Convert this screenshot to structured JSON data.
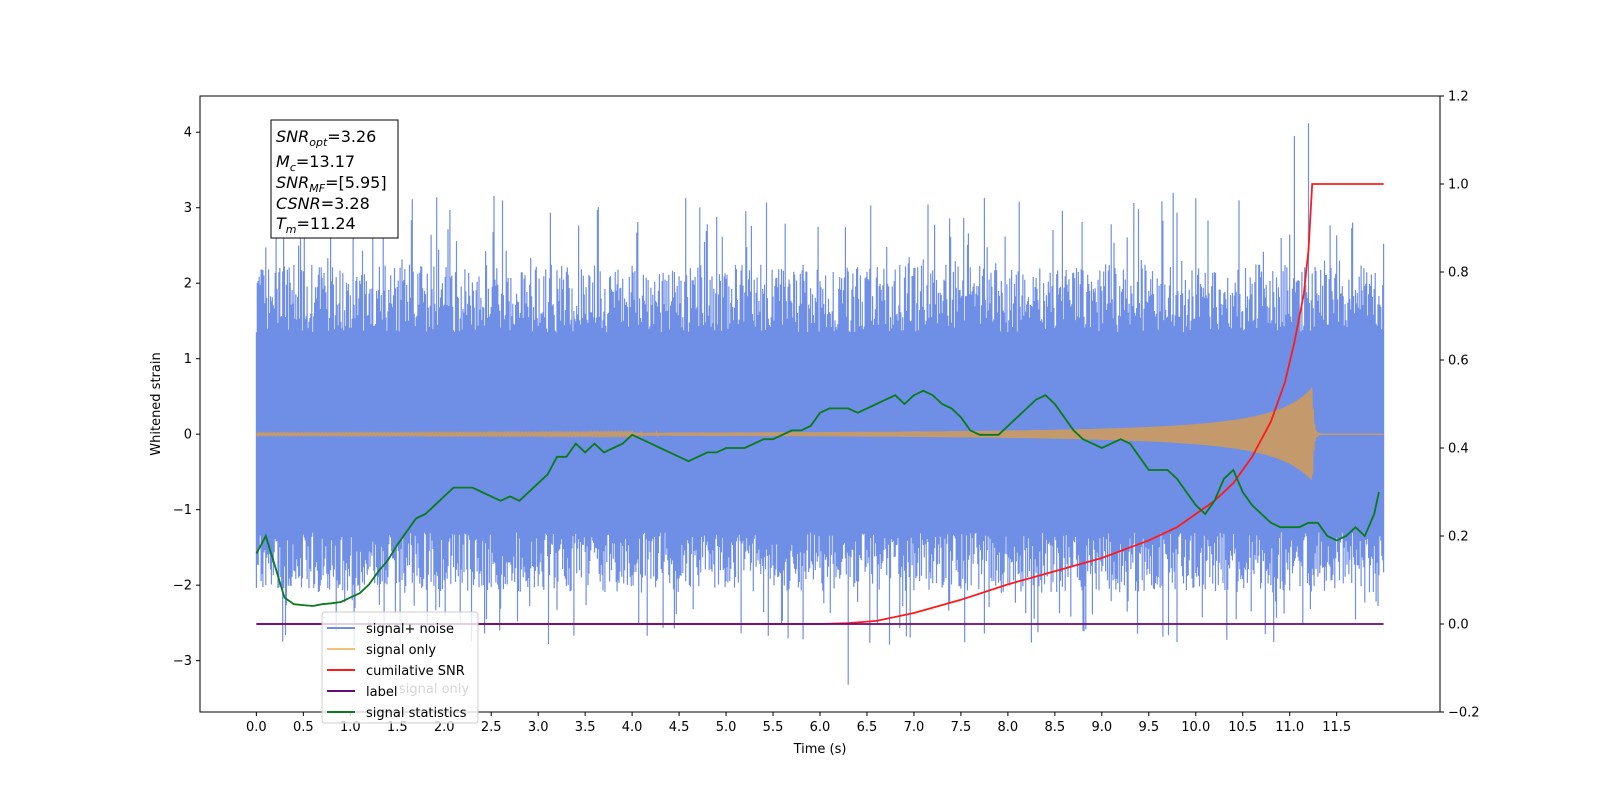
{
  "chart_data": {
    "type": "line",
    "xlabel": "Time (s)",
    "ylabel": "Whitened strain",
    "xlim": [
      -0.6,
      12.6
    ],
    "ylim": [
      -3.68,
      4.48
    ],
    "y2lim": [
      -0.2,
      1.2
    ],
    "x_ticks": [
      "0.0",
      "0.5",
      "1.0",
      "1.5",
      "2.0",
      "2.5",
      "3.0",
      "3.5",
      "4.0",
      "4.5",
      "5.0",
      "5.5",
      "6.0",
      "6.5",
      "7.0",
      "7.5",
      "8.0",
      "8.5",
      "9.0",
      "9.5",
      "10.0",
      "10.5",
      "11.0",
      "11.5"
    ],
    "y_ticks": [
      "4",
      "3",
      "2",
      "1",
      "0",
      "−1",
      "−2",
      "−3"
    ],
    "y2_ticks": [
      "1.2",
      "1.0",
      "0.8",
      "0.6",
      "0.4",
      "0.2",
      "0.0",
      "−0.2"
    ],
    "grid": false,
    "legend_placement": "lower-left",
    "annotation": {
      "lines": [
        {
          "base": "SNR",
          "sub": "opt",
          "rest": "=3.26"
        },
        {
          "base": "M",
          "sub": "c",
          "rest": "=13.17"
        },
        {
          "base": "SNR",
          "sub": "MF",
          "rest": "=[5.95]"
        },
        {
          "base": "CSNR",
          "sub": "",
          "rest": "=3.28"
        },
        {
          "base": "T",
          "sub": "m",
          "rest": "=11.24"
        }
      ]
    },
    "series": [
      {
        "name": "signal+ noise",
        "color": "#6f8ee6",
        "axis": "left",
        "kind": "noise",
        "x_range": [
          0,
          12
        ],
        "band": [
          -1.3,
          1.35
        ],
        "spikes_max": 4.12,
        "spikes_min": -3.32
      },
      {
        "name": "signal only",
        "color": "#f4c07a",
        "axis": "left",
        "kind": "chirp",
        "x_range": [
          0,
          12
        ],
        "merger_time": 11.24,
        "peak": 0.62
      },
      {
        "name": "cumilative SNR",
        "color": "#ff1a1a",
        "axis": "right",
        "x": [
          0,
          5.5,
          6.0,
          6.3,
          6.6,
          7.0,
          7.5,
          8.0,
          8.5,
          9.0,
          9.5,
          9.8,
          10.0,
          10.2,
          10.4,
          10.6,
          10.8,
          10.95,
          11.05,
          11.15,
          11.2,
          11.24,
          11.3,
          12.0
        ],
        "y": [
          0,
          0,
          0.0,
          0.002,
          0.007,
          0.025,
          0.055,
          0.09,
          0.12,
          0.15,
          0.19,
          0.22,
          0.25,
          0.28,
          0.32,
          0.38,
          0.46,
          0.55,
          0.64,
          0.75,
          0.85,
          1.0,
          1.0,
          1.0
        ]
      },
      {
        "name": "label",
        "color": "#6a0a7a",
        "axis": "right",
        "x": [
          0,
          12
        ],
        "y": [
          0,
          0
        ]
      },
      {
        "name": "signal statistics",
        "color": "#0a7a1a",
        "axis": "right",
        "x": [
          0,
          0.1,
          0.2,
          0.3,
          0.4,
          0.5,
          0.6,
          0.7,
          0.8,
          0.9,
          1.0,
          1.1,
          1.2,
          1.3,
          1.4,
          1.5,
          1.6,
          1.7,
          1.8,
          1.9,
          2.0,
          2.1,
          2.2,
          2.3,
          2.4,
          2.5,
          2.6,
          2.7,
          2.8,
          2.9,
          3.0,
          3.1,
          3.2,
          3.3,
          3.4,
          3.5,
          3.6,
          3.7,
          3.8,
          3.9,
          4.0,
          4.1,
          4.2,
          4.3,
          4.4,
          4.5,
          4.6,
          4.7,
          4.8,
          4.9,
          5.0,
          5.1,
          5.2,
          5.3,
          5.4,
          5.5,
          5.6,
          5.7,
          5.8,
          5.9,
          6.0,
          6.1,
          6.2,
          6.3,
          6.4,
          6.5,
          6.6,
          6.7,
          6.8,
          6.9,
          7.0,
          7.1,
          7.2,
          7.3,
          7.4,
          7.5,
          7.6,
          7.7,
          7.8,
          7.9,
          8.0,
          8.1,
          8.2,
          8.3,
          8.4,
          8.5,
          8.6,
          8.7,
          8.8,
          8.9,
          9.0,
          9.1,
          9.2,
          9.3,
          9.4,
          9.5,
          9.6,
          9.7,
          9.8,
          9.9,
          10.0,
          10.1,
          10.2,
          10.3,
          10.4,
          10.5,
          10.6,
          10.7,
          10.8,
          10.9,
          11.0,
          11.1,
          11.2,
          11.3,
          11.4,
          11.5,
          11.6,
          11.7,
          11.8,
          11.9,
          11.95
        ],
        "y": [
          0.16,
          0.2,
          0.13,
          0.06,
          0.045,
          0.043,
          0.041,
          0.045,
          0.047,
          0.05,
          0.06,
          0.07,
          0.09,
          0.12,
          0.145,
          0.18,
          0.21,
          0.24,
          0.25,
          0.27,
          0.29,
          0.31,
          0.31,
          0.31,
          0.3,
          0.29,
          0.28,
          0.29,
          0.28,
          0.3,
          0.32,
          0.34,
          0.38,
          0.38,
          0.41,
          0.39,
          0.41,
          0.39,
          0.4,
          0.41,
          0.43,
          0.42,
          0.41,
          0.4,
          0.39,
          0.38,
          0.37,
          0.38,
          0.39,
          0.39,
          0.4,
          0.4,
          0.4,
          0.41,
          0.42,
          0.42,
          0.43,
          0.44,
          0.44,
          0.45,
          0.48,
          0.49,
          0.49,
          0.49,
          0.48,
          0.49,
          0.5,
          0.51,
          0.52,
          0.5,
          0.52,
          0.53,
          0.52,
          0.5,
          0.49,
          0.47,
          0.44,
          0.43,
          0.43,
          0.43,
          0.45,
          0.47,
          0.49,
          0.51,
          0.52,
          0.5,
          0.47,
          0.44,
          0.42,
          0.41,
          0.4,
          0.41,
          0.42,
          0.41,
          0.38,
          0.35,
          0.35,
          0.35,
          0.33,
          0.3,
          0.27,
          0.25,
          0.28,
          0.33,
          0.35,
          0.3,
          0.27,
          0.25,
          0.23,
          0.22,
          0.22,
          0.22,
          0.23,
          0.23,
          0.2,
          0.19,
          0.2,
          0.22,
          0.2,
          0.25,
          0.3
        ]
      }
    ],
    "legend": {
      "entries": [
        "signal+ noise",
        "signal only",
        "cumilative SNR",
        "label",
        "signal statistics"
      ],
      "ghost_text": "signal only"
    }
  }
}
